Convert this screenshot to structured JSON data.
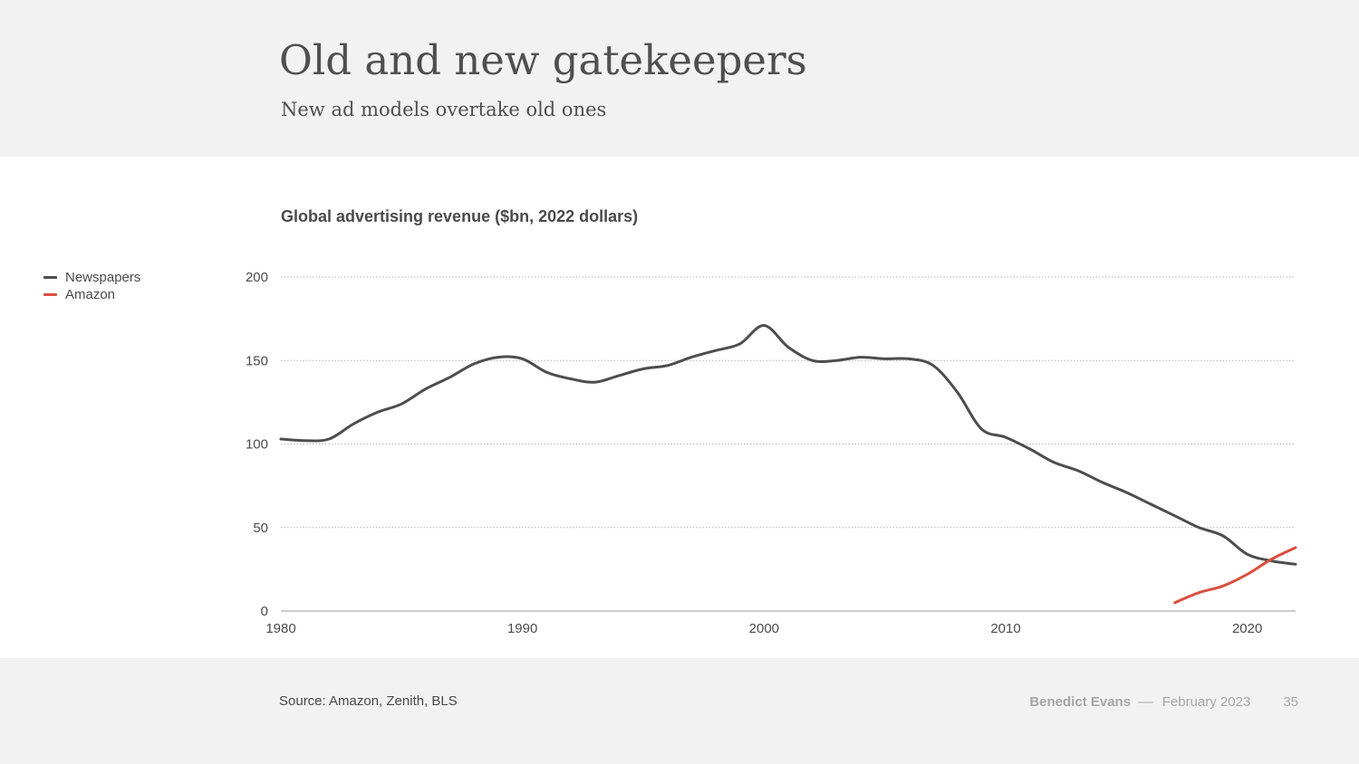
{
  "header": {
    "title": "Old and new gatekeepers",
    "subtitle": "New ad models overtake old ones"
  },
  "footer": {
    "source": "Source: Amazon, Zenith, BLS",
    "author": "Benedict Evans",
    "separator": "––",
    "date": "February 2023",
    "page": "35"
  },
  "chart_data": {
    "type": "line",
    "title": "Global advertising revenue ($bn, 2022 dollars)",
    "xlabel": "",
    "ylabel": "",
    "xlim": [
      1980,
      2022
    ],
    "ylim": [
      0,
      200
    ],
    "xticks": [
      1980,
      1990,
      2000,
      2010,
      2020
    ],
    "yticks": [
      0,
      50,
      100,
      150,
      200
    ],
    "grid": "horizontal-dotted",
    "legend": "left",
    "series": [
      {
        "name": "Newspapers",
        "color": "#4d4d4d",
        "x": [
          1980,
          1981,
          1982,
          1983,
          1984,
          1985,
          1986,
          1987,
          1988,
          1989,
          1990,
          1991,
          1992,
          1993,
          1994,
          1995,
          1996,
          1997,
          1998,
          1999,
          2000,
          2001,
          2002,
          2003,
          2004,
          2005,
          2006,
          2007,
          2008,
          2009,
          2010,
          2011,
          2012,
          2013,
          2014,
          2015,
          2016,
          2017,
          2018,
          2019,
          2020,
          2021,
          2022
        ],
        "values": [
          103,
          102,
          103,
          112,
          119,
          124,
          133,
          140,
          148,
          152,
          151,
          143,
          139,
          137,
          141,
          145,
          147,
          152,
          156,
          160,
          171,
          158,
          150,
          150,
          152,
          151,
          151,
          147,
          131,
          109,
          104,
          97,
          89,
          84,
          77,
          71,
          64,
          57,
          50,
          45,
          34,
          30,
          28
        ]
      },
      {
        "name": "Amazon",
        "color": "#d9503f",
        "x": [
          2017,
          2018,
          2019,
          2020,
          2021,
          2022
        ],
        "values": [
          5,
          11,
          15,
          22,
          31,
          38
        ]
      }
    ]
  }
}
